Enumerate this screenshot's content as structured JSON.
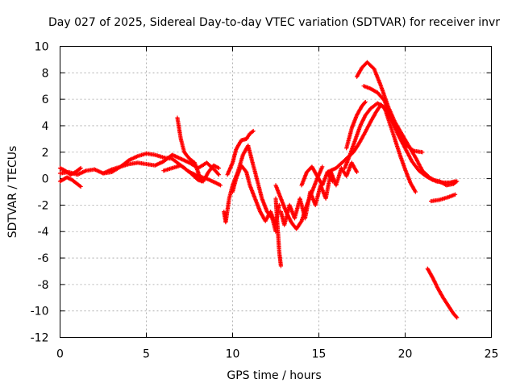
{
  "chart_data": {
    "type": "scatter",
    "title": "Day 027 of 2025, Sidereal Day-to-day VTEC variation (SDTVAR) for receiver invr",
    "xlabel": "GPS time / hours",
    "ylabel": "SDTVAR / TECUs",
    "xlim": [
      0,
      25
    ],
    "ylim": [
      -12,
      10
    ],
    "xticks": [
      0,
      5,
      10,
      15,
      20,
      25
    ],
    "yticks": [
      -12,
      -10,
      -8,
      -6,
      -4,
      -2,
      0,
      2,
      4,
      6,
      8,
      10
    ],
    "grid": true,
    "marker": "+",
    "series": [
      {
        "name": "SDTVAR",
        "color": "#ff0000",
        "segments": [
          [
            [
              0,
              0.4
            ],
            [
              0.5,
              0.5
            ],
            [
              1,
              0.3
            ],
            [
              1.5,
              0.6
            ],
            [
              2,
              0.7
            ],
            [
              2.5,
              0.4
            ],
            [
              3,
              0.5
            ],
            [
              3.5,
              0.9
            ],
            [
              4,
              1.4
            ],
            [
              4.5,
              1.7
            ],
            [
              5,
              1.9
            ],
            [
              5.5,
              1.8
            ],
            [
              6,
              1.6
            ],
            [
              6.5,
              1.5
            ],
            [
              7,
              1.0
            ],
            [
              7.5,
              0.5
            ],
            [
              8,
              0.2
            ],
            [
              8.5,
              0.0
            ],
            [
              9,
              -0.3
            ],
            [
              9.3,
              -0.5
            ]
          ],
          [
            [
              0,
              -0.2
            ],
            [
              0.4,
              0.1
            ],
            [
              0.7,
              -0.1
            ],
            [
              1,
              -0.4
            ],
            [
              1.2,
              -0.6
            ]
          ],
          [
            [
              0,
              0.8
            ],
            [
              0.3,
              0.6
            ],
            [
              0.6,
              0.3
            ],
            [
              0.9,
              0.5
            ],
            [
              1.2,
              0.8
            ]
          ],
          [
            [
              2.5,
              0.4
            ],
            [
              3,
              0.7
            ],
            [
              3.5,
              0.9
            ],
            [
              4,
              1.1
            ],
            [
              4.5,
              1.2
            ],
            [
              5,
              1.1
            ],
            [
              5.5,
              1.0
            ],
            [
              6,
              1.3
            ],
            [
              6.5,
              1.8
            ],
            [
              7,
              1.5
            ],
            [
              7.5,
              1.2
            ],
            [
              8,
              0.8
            ],
            [
              8.5,
              1.2
            ],
            [
              9,
              0.6
            ],
            [
              9.2,
              0.3
            ]
          ],
          [
            [
              6,
              0.6
            ],
            [
              6.5,
              0.8
            ],
            [
              7,
              1.0
            ],
            [
              7.5,
              0.5
            ],
            [
              8,
              -0.1
            ],
            [
              8.3,
              -0.2
            ],
            [
              8.6,
              0.5
            ],
            [
              8.9,
              1.0
            ],
            [
              9.2,
              0.8
            ]
          ],
          [
            [
              6.8,
              4.6
            ],
            [
              7,
              3.0
            ],
            [
              7.2,
              2.0
            ],
            [
              7.5,
              1.5
            ],
            [
              7.8,
              1.2
            ],
            [
              8,
              0.5
            ],
            [
              8.2,
              -0.2
            ]
          ],
          [
            [
              9.5,
              -2.5
            ],
            [
              9.6,
              -3.3
            ],
            [
              9.8,
              -1.5
            ],
            [
              10,
              -0.5
            ],
            [
              10.3,
              0.5
            ],
            [
              10.6,
              1.8
            ],
            [
              10.9,
              2.5
            ],
            [
              11.1,
              1.5
            ],
            [
              11.4,
              0
            ],
            [
              11.7,
              -1.5
            ],
            [
              12,
              -2.5
            ],
            [
              12.3,
              -3.0
            ],
            [
              12.5,
              -4.0
            ]
          ],
          [
            [
              9.7,
              0.3
            ],
            [
              10,
              1.2
            ],
            [
              10.2,
              2.2
            ],
            [
              10.5,
              2.9
            ],
            [
              10.8,
              3.0
            ],
            [
              11,
              3.4
            ],
            [
              11.2,
              3.6
            ]
          ],
          [
            [
              10,
              -1
            ],
            [
              10.2,
              0
            ],
            [
              10.5,
              1.0
            ],
            [
              10.8,
              0.5
            ],
            [
              11,
              -0.5
            ],
            [
              11.3,
              -1.5
            ],
            [
              11.6,
              -2.5
            ],
            [
              11.9,
              -3.2
            ],
            [
              12.2,
              -2.5
            ],
            [
              12.5,
              -3.5
            ],
            [
              12.7,
              -2.0
            ]
          ],
          [
            [
              12.5,
              -1.5
            ],
            [
              12.6,
              -3.5
            ],
            [
              12.7,
              -5.5
            ],
            [
              12.8,
              -6.6
            ]
          ],
          [
            [
              12.5,
              -0.5
            ],
            [
              12.8,
              -1.5
            ],
            [
              13.1,
              -2.5
            ],
            [
              13.4,
              -3.3
            ],
            [
              13.7,
              -3.8
            ],
            [
              14,
              -3.2
            ],
            [
              14.3,
              -2.0
            ],
            [
              14.6,
              -1.0
            ],
            [
              14.9,
              0
            ],
            [
              15.2,
              0.9
            ]
          ],
          [
            [
              12.8,
              -2.5
            ],
            [
              13,
              -3.5
            ],
            [
              13.3,
              -2.0
            ],
            [
              13.6,
              -3.0
            ],
            [
              13.9,
              -1.5
            ],
            [
              14.2,
              -3.0
            ],
            [
              14.5,
              -1.0
            ],
            [
              14.8,
              -2.0
            ],
            [
              15.1,
              -0.5
            ],
            [
              15.4,
              -1.5
            ],
            [
              15.7,
              0.5
            ],
            [
              16,
              -0.5
            ],
            [
              16.3,
              0.8
            ],
            [
              16.6,
              0.2
            ],
            [
              16.9,
              1.2
            ],
            [
              17.2,
              0.5
            ]
          ],
          [
            [
              14,
              -0.5
            ],
            [
              14.3,
              0.5
            ],
            [
              14.6,
              0.9
            ],
            [
              14.9,
              0.2
            ],
            [
              15.2,
              -0.5
            ],
            [
              15.5,
              0.5
            ],
            [
              15.8,
              -0.2
            ]
          ],
          [
            [
              15.5,
              0.5
            ],
            [
              16,
              0.8
            ],
            [
              16.5,
              1.4
            ],
            [
              17,
              2.0
            ],
            [
              17.3,
              2.6
            ],
            [
              17.6,
              3.3
            ],
            [
              18,
              4.3
            ],
            [
              18.3,
              5.0
            ],
            [
              18.6,
              5.6
            ],
            [
              19,
              5.0
            ],
            [
              19.4,
              4.0
            ],
            [
              19.7,
              3.2
            ],
            [
              20,
              2.6
            ],
            [
              20.5,
              2.1
            ],
            [
              21,
              2.0
            ]
          ],
          [
            [
              16.5,
              0.8
            ],
            [
              16.8,
              1.8
            ],
            [
              17.1,
              2.9
            ],
            [
              17.4,
              4.0
            ],
            [
              17.7,
              4.8
            ],
            [
              18,
              5.3
            ],
            [
              18.4,
              5.7
            ],
            [
              18.8,
              5.4
            ],
            [
              19.1,
              4.2
            ],
            [
              19.4,
              3.0
            ],
            [
              19.7,
              1.8
            ],
            [
              20,
              0.7
            ],
            [
              20.3,
              -0.3
            ],
            [
              20.6,
              -1.0
            ]
          ],
          [
            [
              16.6,
              2.3
            ],
            [
              16.9,
              3.8
            ],
            [
              17.2,
              4.8
            ],
            [
              17.5,
              5.5
            ],
            [
              17.7,
              5.8
            ]
          ],
          [
            [
              17.2,
              7.7
            ],
            [
              17.5,
              8.4
            ],
            [
              17.8,
              8.8
            ],
            [
              18.2,
              8.3
            ],
            [
              18.6,
              7.0
            ],
            [
              19,
              5.5
            ],
            [
              19.4,
              4.3
            ],
            [
              19.8,
              3.4
            ],
            [
              20.2,
              2.5
            ],
            [
              20.6,
              1.6
            ],
            [
              21,
              0.6
            ],
            [
              21.4,
              0.1
            ],
            [
              21.8,
              -0.2
            ],
            [
              22.2,
              -0.3
            ],
            [
              22.6,
              -0.3
            ],
            [
              22.9,
              -0.2
            ]
          ],
          [
            [
              17.6,
              7.0
            ],
            [
              18,
              6.8
            ],
            [
              18.4,
              6.5
            ],
            [
              18.8,
              5.9
            ],
            [
              19.2,
              4.5
            ],
            [
              19.6,
              3.3
            ],
            [
              20,
              2.3
            ],
            [
              20.4,
              1.3
            ],
            [
              20.8,
              0.6
            ],
            [
              21.2,
              0.2
            ],
            [
              21.6,
              -0.1
            ],
            [
              22,
              -0.2
            ],
            [
              22.4,
              -0.5
            ],
            [
              22.8,
              -0.4
            ],
            [
              23,
              -0.2
            ]
          ],
          [
            [
              21.5,
              -1.7
            ],
            [
              22,
              -1.6
            ],
            [
              22.5,
              -1.4
            ],
            [
              22.9,
              -1.2
            ]
          ],
          [
            [
              21.3,
              -6.8
            ],
            [
              21.6,
              -7.5
            ],
            [
              21.9,
              -8.3
            ],
            [
              22.2,
              -9.0
            ],
            [
              22.5,
              -9.6
            ],
            [
              22.8,
              -10.2
            ],
            [
              23,
              -10.5
            ]
          ]
        ]
      }
    ]
  }
}
